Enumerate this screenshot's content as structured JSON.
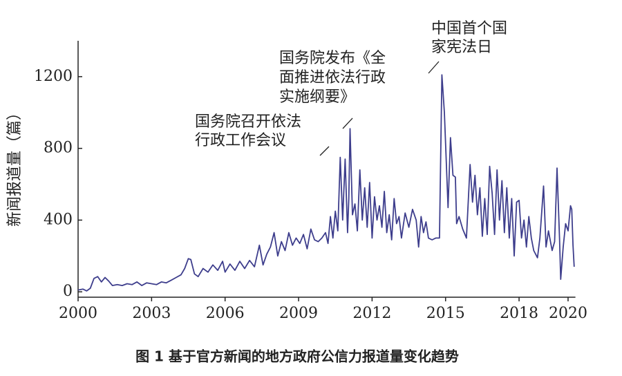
{
  "chart_data": {
    "type": "line",
    "y_label": "新闻报道量（篇）",
    "caption": "图 1    基于官方新闻的地方政府公信力报道量变化趋势",
    "xlim": [
      2000,
      2020.3
    ],
    "xticks": [
      2000,
      2003,
      2006,
      2009,
      2012,
      2015,
      2018,
      2020
    ],
    "ylim": [
      -30,
      1400
    ],
    "yticks": [
      0,
      400,
      800,
      1200
    ],
    "grid": false,
    "annotations": [
      {
        "lines": [
          "国务院召开依法",
          "行政工作会议"
        ]
      },
      {
        "lines": [
          "国务院发布《全",
          "面推进依法行政",
          "实施纲要》"
        ]
      },
      {
        "lines": [
          "中国首个国",
          "家宪法日"
        ]
      }
    ],
    "series": [
      {
        "color": "#3d3d8c",
        "x": [
          2000.0,
          2000.2,
          2000.35,
          2000.5,
          2000.65,
          2000.8,
          2000.95,
          2001.1,
          2001.25,
          2001.4,
          2001.6,
          2001.8,
          2002.0,
          2002.2,
          2002.4,
          2002.6,
          2002.8,
          2003.0,
          2003.2,
          2003.4,
          2003.6,
          2003.8,
          2004.0,
          2004.2,
          2004.35,
          2004.5,
          2004.6,
          2004.75,
          2004.9,
          2005.1,
          2005.3,
          2005.5,
          2005.7,
          2005.9,
          2006.0,
          2006.2,
          2006.4,
          2006.6,
          2006.8,
          2007.0,
          2007.2,
          2007.4,
          2007.55,
          2007.7,
          2007.85,
          2008.0,
          2008.15,
          2008.3,
          2008.45,
          2008.6,
          2008.75,
          2008.9,
          2009.05,
          2009.2,
          2009.35,
          2009.5,
          2009.65,
          2009.8,
          2009.95,
          2010.1,
          2010.2,
          2010.3,
          2010.4,
          2010.5,
          2010.6,
          2010.7,
          2010.8,
          2010.9,
          2011.0,
          2011.05,
          2011.1,
          2011.2,
          2011.3,
          2011.4,
          2011.5,
          2011.6,
          2011.7,
          2011.8,
          2011.9,
          2012.0,
          2012.1,
          2012.2,
          2012.3,
          2012.4,
          2012.5,
          2012.6,
          2012.7,
          2012.8,
          2012.9,
          2013.0,
          2013.1,
          2013.2,
          2013.35,
          2013.5,
          2013.65,
          2013.8,
          2013.9,
          2014.0,
          2014.1,
          2014.2,
          2014.3,
          2014.45,
          2014.6,
          2014.75,
          2014.85,
          2014.95,
          2015.1,
          2015.2,
          2015.3,
          2015.4,
          2015.45,
          2015.55,
          2015.7,
          2015.85,
          2016.0,
          2016.1,
          2016.2,
          2016.3,
          2016.4,
          2016.5,
          2016.6,
          2016.7,
          2016.8,
          2016.9,
          2017.0,
          2017.1,
          2017.2,
          2017.3,
          2017.4,
          2017.5,
          2017.6,
          2017.7,
          2017.8,
          2017.9,
          2018.0,
          2018.1,
          2018.2,
          2018.3,
          2018.4,
          2018.5,
          2018.6,
          2018.75,
          2018.85,
          2019.0,
          2019.1,
          2019.2,
          2019.35,
          2019.45,
          2019.55,
          2019.65,
          2019.7,
          2019.8,
          2019.9,
          2020.0,
          2020.1,
          2020.15,
          2020.2,
          2020.25
        ],
        "values": [
          10,
          15,
          5,
          20,
          75,
          85,
          55,
          80,
          60,
          35,
          40,
          35,
          45,
          40,
          55,
          35,
          50,
          45,
          40,
          55,
          50,
          65,
          80,
          95,
          130,
          185,
          180,
          100,
          85,
          130,
          110,
          150,
          120,
          170,
          110,
          155,
          120,
          170,
          130,
          175,
          140,
          260,
          150,
          210,
          250,
          330,
          200,
          280,
          230,
          330,
          260,
          300,
          270,
          320,
          240,
          350,
          290,
          280,
          300,
          330,
          270,
          420,
          300,
          450,
          340,
          750,
          400,
          740,
          330,
          520,
          910,
          430,
          490,
          340,
          680,
          400,
          580,
          360,
          610,
          300,
          530,
          400,
          480,
          360,
          560,
          330,
          430,
          290,
          520,
          380,
          420,
          300,
          440,
          360,
          460,
          400,
          250,
          420,
          330,
          390,
          300,
          290,
          300,
          300,
          1210,
          1000,
          470,
          860,
          650,
          640,
          380,
          420,
          350,
          300,
          710,
          500,
          650,
          430,
          580,
          310,
          520,
          320,
          700,
          550,
          320,
          680,
          400,
          620,
          330,
          580,
          300,
          520,
          200,
          500,
          510,
          300,
          400,
          250,
          420,
          300,
          230,
          190,
          300,
          590,
          250,
          340,
          230,
          280,
          690,
          300,
          70,
          250,
          380,
          340,
          480,
          460,
          260,
          140
        ]
      }
    ]
  }
}
